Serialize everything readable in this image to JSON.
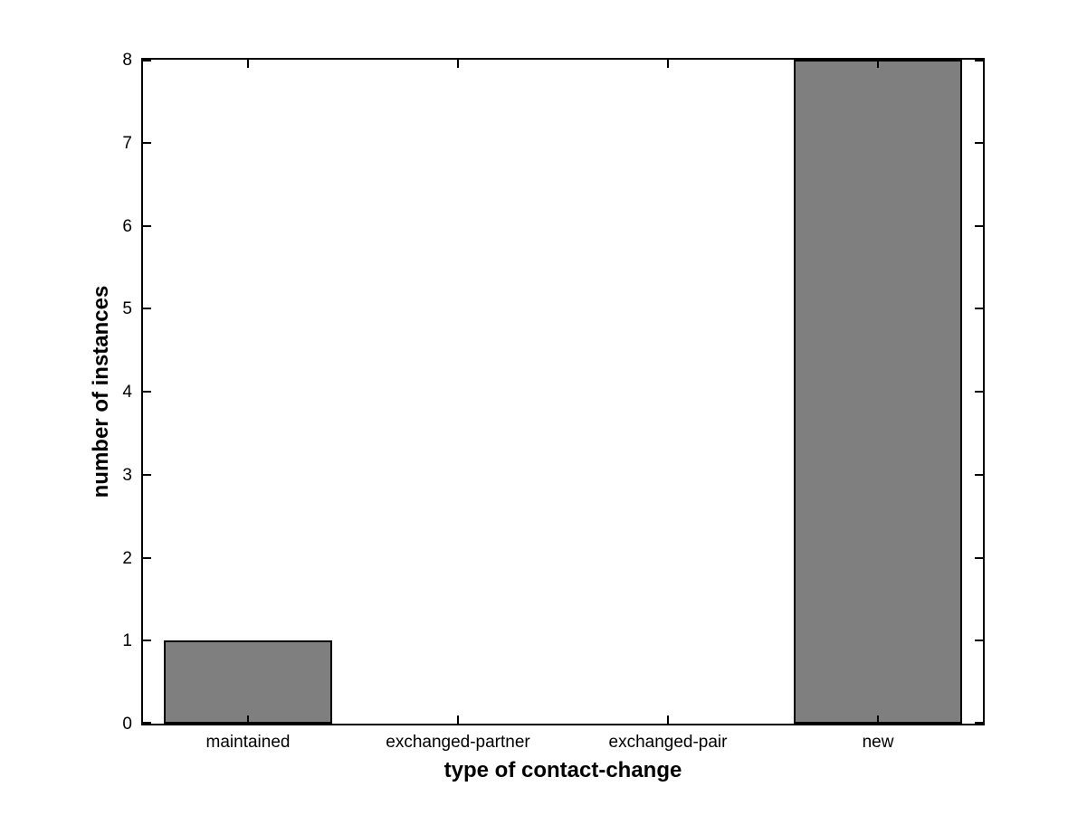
{
  "chart_data": {
    "type": "bar",
    "title": "",
    "xlabel": "type of contact-change",
    "ylabel": "number of instances",
    "categories": [
      "maintained",
      "exchanged-partner",
      "exchanged-pair",
      "new"
    ],
    "values": [
      1,
      0,
      0,
      8
    ],
    "ylim": [
      0,
      8
    ],
    "yticks": [
      0,
      1,
      2,
      3,
      4,
      5,
      6,
      7,
      8
    ],
    "bar_width_fraction": 0.8,
    "bar_color": "#7f7f7f",
    "bar_edge_color": "#000000",
    "axis_color": "#000000",
    "background_color": "#ffffff",
    "grid": false,
    "legend": null,
    "tick_direction": "in",
    "box": true
  }
}
